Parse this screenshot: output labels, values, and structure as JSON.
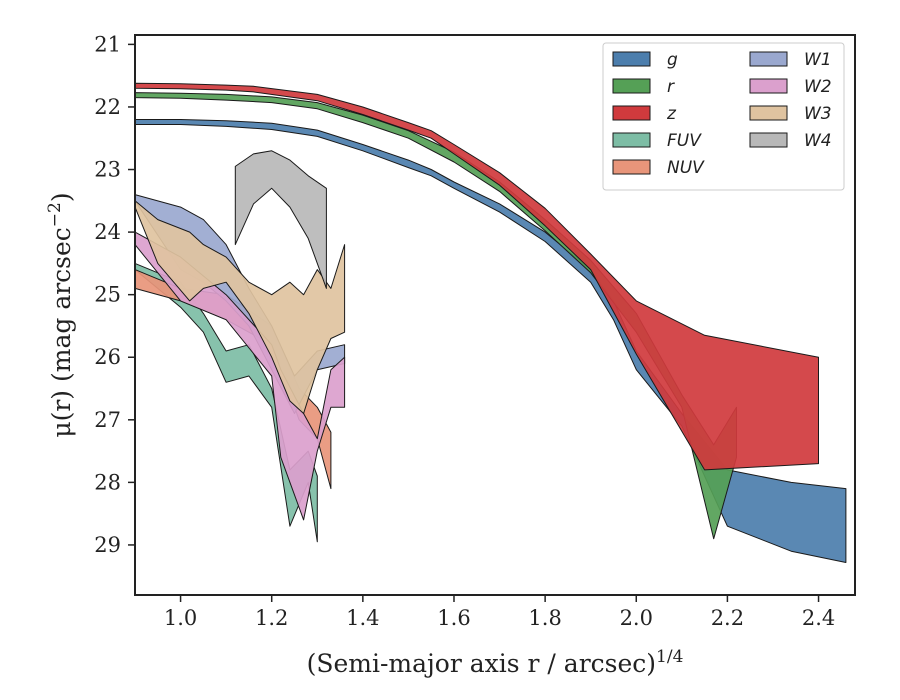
{
  "chart_data": {
    "type": "area",
    "title": "",
    "xlabel": "(Semi-major axis r / arcsec)",
    "xlabel_exponent": "1/4",
    "ylabel": "μ(r) (mag arcsec",
    "ylabel_exponent": "−2",
    "ylabel_close": ")",
    "xlim": [
      0.9,
      2.48
    ],
    "ylim": [
      29.8,
      20.85
    ],
    "y_inverted": true,
    "x_ticks": [
      1.0,
      1.2,
      1.4,
      1.6,
      1.8,
      2.0,
      2.2,
      2.4
    ],
    "x_tick_labels": [
      "1.0",
      "1.2",
      "1.4",
      "1.6",
      "1.8",
      "2.0",
      "2.2",
      "2.4"
    ],
    "y_ticks": [
      21,
      22,
      23,
      24,
      25,
      26,
      27,
      28,
      29
    ],
    "y_tick_labels": [
      "21",
      "22",
      "23",
      "24",
      "25",
      "26",
      "27",
      "28",
      "29"
    ],
    "grid": false,
    "legend_position": "top-right",
    "legend_columns": 2,
    "series": [
      {
        "name": "g",
        "color": "#4c7ead",
        "x": [
          0.9,
          1.0,
          1.1,
          1.2,
          1.3,
          1.4,
          1.5,
          1.55,
          1.6,
          1.7,
          1.8,
          1.9,
          1.95,
          2.0,
          2.1,
          2.2,
          2.34,
          2.46
        ],
        "y_bright": [
          22.2,
          22.2,
          22.22,
          22.26,
          22.37,
          22.6,
          22.85,
          23.0,
          23.2,
          23.55,
          24.0,
          24.6,
          25.1,
          25.9,
          26.9,
          27.8,
          28.0,
          28.1
        ],
        "y_faint": [
          22.28,
          22.28,
          22.31,
          22.36,
          22.47,
          22.7,
          22.97,
          23.1,
          23.3,
          23.68,
          24.15,
          24.8,
          25.4,
          26.2,
          27.1,
          28.7,
          29.1,
          29.28
        ]
      },
      {
        "name": "r",
        "color": "#55a056",
        "x": [
          0.9,
          1.0,
          1.1,
          1.2,
          1.3,
          1.4,
          1.5,
          1.6,
          1.7,
          1.8,
          1.9,
          2.0,
          2.1,
          2.17,
          2.22
        ],
        "y_bright": [
          21.77,
          21.78,
          21.8,
          21.84,
          21.93,
          22.13,
          22.38,
          22.72,
          23.2,
          23.8,
          24.45,
          25.3,
          26.6,
          27.4,
          26.8
        ],
        "y_faint": [
          21.85,
          21.86,
          21.89,
          21.93,
          22.03,
          22.25,
          22.5,
          22.88,
          23.35,
          23.98,
          24.65,
          25.6,
          26.8,
          28.9,
          27.6
        ]
      },
      {
        "name": "z",
        "color": "#d03a3d",
        "x": [
          0.9,
          1.0,
          1.1,
          1.16,
          1.3,
          1.4,
          1.5,
          1.55,
          1.6,
          1.7,
          1.8,
          1.9,
          2.0,
          2.15,
          2.4
        ],
        "y_bright": [
          21.62,
          21.63,
          21.65,
          21.67,
          21.8,
          22.0,
          22.25,
          22.38,
          22.6,
          23.05,
          23.62,
          24.35,
          25.1,
          25.65,
          26.0
        ],
        "y_faint": [
          21.7,
          21.71,
          21.73,
          21.76,
          21.9,
          22.12,
          22.37,
          22.5,
          22.75,
          23.25,
          23.9,
          24.6,
          25.95,
          27.8,
          27.7
        ]
      },
      {
        "name": "FUV",
        "color": "#7dbda5",
        "x": [
          0.9,
          1.0,
          1.05,
          1.1,
          1.15,
          1.2,
          1.24,
          1.28,
          1.3
        ],
        "y_bright": [
          24.5,
          24.8,
          25.3,
          25.9,
          25.8,
          26.5,
          27.8,
          27.5,
          27.9
        ],
        "y_faint": [
          24.6,
          25.2,
          25.6,
          26.4,
          26.3,
          26.8,
          28.7,
          28.0,
          28.95
        ]
      },
      {
        "name": "NUV",
        "color": "#e8957a",
        "x": [
          0.9,
          1.0,
          1.1,
          1.2,
          1.26,
          1.3,
          1.33
        ],
        "y_bright": [
          24.6,
          24.9,
          25.0,
          25.5,
          26.5,
          26.8,
          27.2
        ],
        "y_faint": [
          24.9,
          25.1,
          25.4,
          25.8,
          27.0,
          27.3,
          28.1
        ]
      },
      {
        "name": "W1",
        "color": "#9aa8cf",
        "x": [
          0.9,
          1.0,
          1.05,
          1.1,
          1.15,
          1.2,
          1.25,
          1.3,
          1.36
        ],
        "y_bright": [
          23.4,
          23.6,
          23.8,
          24.2,
          24.9,
          25.5,
          26.3,
          25.9,
          25.8
        ],
        "y_faint": [
          23.5,
          24.6,
          24.8,
          25.1,
          25.5,
          26.2,
          26.9,
          26.2,
          26.1
        ]
      },
      {
        "name": "W2",
        "color": "#dba0cd",
        "x": [
          0.9,
          1.0,
          1.1,
          1.2,
          1.22,
          1.27,
          1.3,
          1.33,
          1.36
        ],
        "y_bright": [
          24.0,
          24.4,
          25.0,
          25.8,
          26.2,
          26.9,
          27.3,
          26.2,
          26.0
        ],
        "y_faint": [
          24.2,
          25.1,
          25.4,
          26.3,
          27.6,
          28.6,
          27.5,
          26.8,
          26.8
        ]
      },
      {
        "name": "W3",
        "color": "#dfc3a0",
        "x": [
          0.9,
          0.95,
          1.02,
          1.05,
          1.1,
          1.15,
          1.2,
          1.24,
          1.27,
          1.3,
          1.33,
          1.36
        ],
        "y_bright": [
          23.5,
          23.8,
          24.0,
          24.2,
          24.4,
          24.8,
          25.0,
          24.8,
          25.0,
          24.6,
          24.9,
          24.2
        ],
        "y_faint": [
          23.6,
          24.5,
          25.1,
          24.9,
          24.8,
          25.3,
          26.0,
          26.7,
          26.9,
          26.2,
          25.7,
          25.6
        ]
      },
      {
        "name": "W4",
        "color": "#b8b8b8",
        "x": [
          1.12,
          1.16,
          1.2,
          1.24,
          1.28,
          1.32
        ],
        "y_bright": [
          22.95,
          22.75,
          22.7,
          22.85,
          23.1,
          23.3
        ],
        "y_faint": [
          24.2,
          23.55,
          23.3,
          23.6,
          24.1,
          24.9
        ]
      }
    ]
  }
}
